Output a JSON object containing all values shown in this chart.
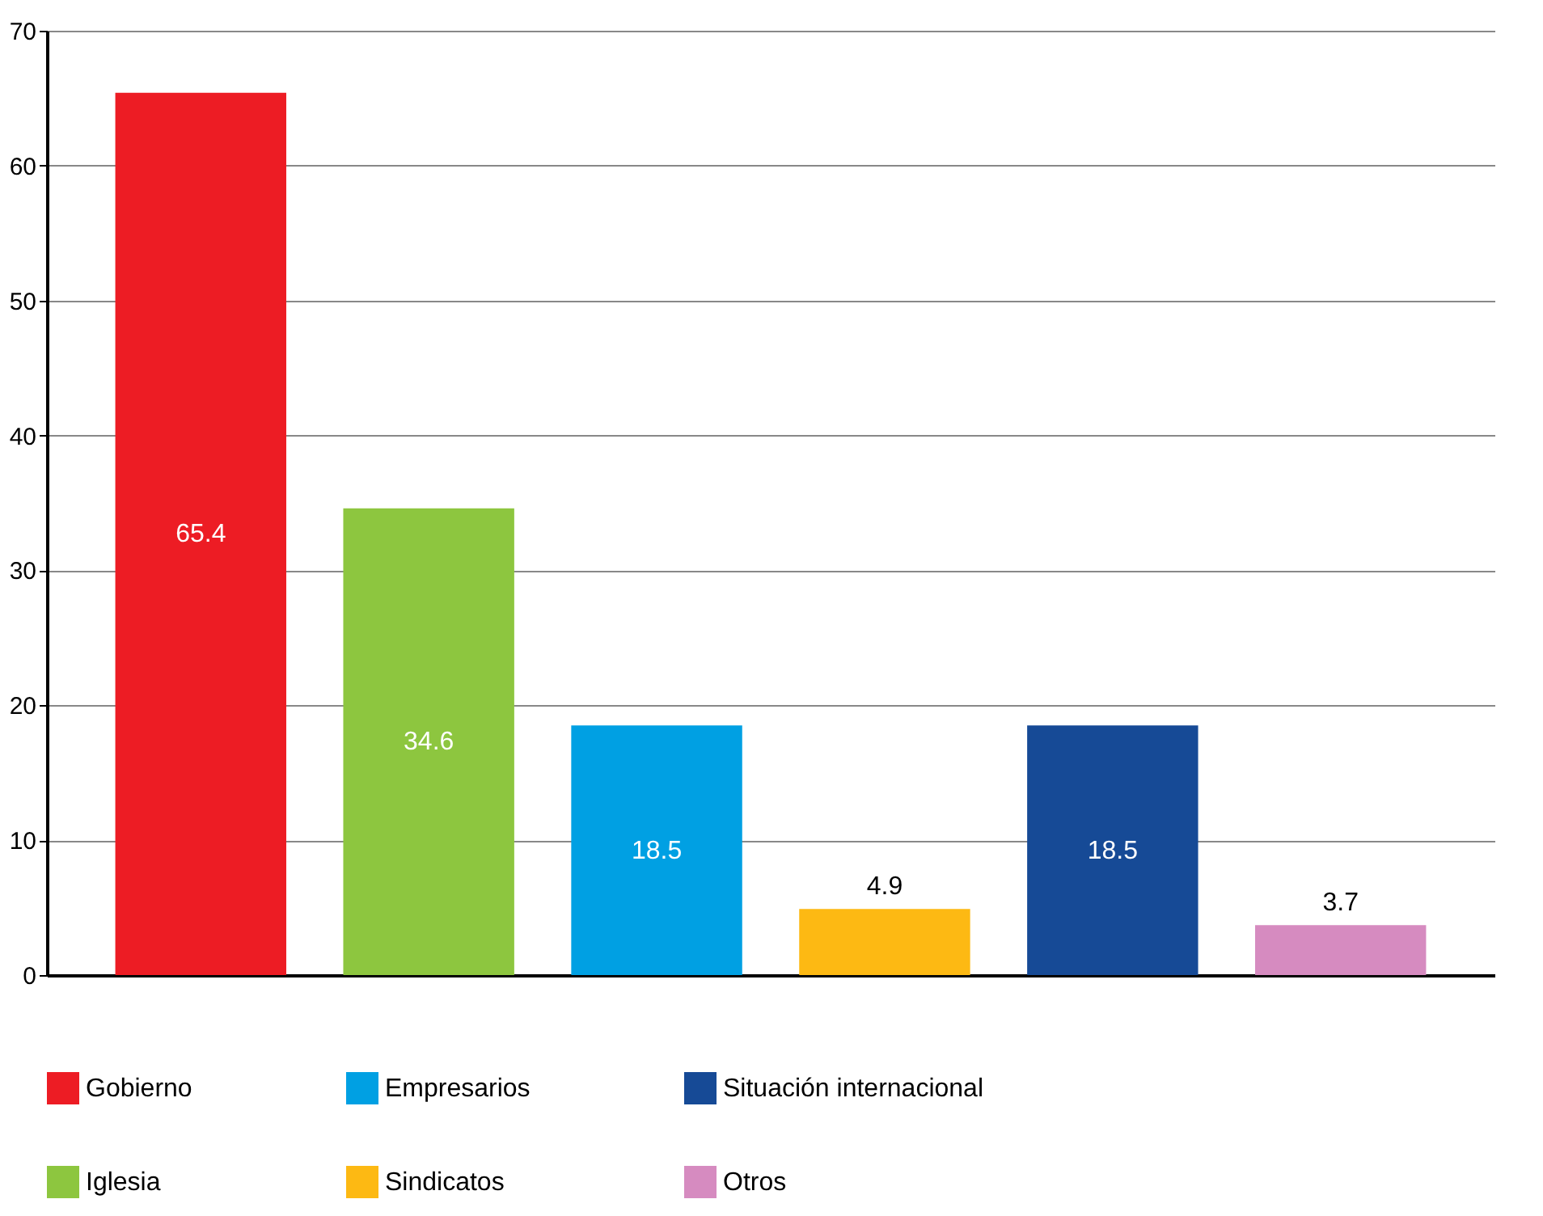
{
  "chart_data": {
    "type": "bar",
    "categories": [
      null,
      null,
      null,
      null,
      null,
      null
    ],
    "series": [
      {
        "name": "Gobierno",
        "color": "#ed1c24",
        "values": [
          65.4,
          null,
          null,
          null,
          null,
          null
        ]
      },
      {
        "name": "Iglesia",
        "color": "#8dc63f",
        "values": [
          null,
          34.6,
          null,
          null,
          null,
          null
        ]
      },
      {
        "name": "Empresarios",
        "color": "#00a0e3",
        "values": [
          null,
          null,
          18.5,
          null,
          null,
          null
        ]
      },
      {
        "name": "Sindicatos",
        "color": "#fdb913",
        "values": [
          null,
          null,
          null,
          4.9,
          null,
          null
        ]
      },
      {
        "name": "Situación internacional",
        "color": "#164a96",
        "values": [
          null,
          null,
          null,
          null,
          18.5,
          null
        ]
      },
      {
        "name": "Otros",
        "color": "#d68bc0",
        "values": [
          null,
          null,
          null,
          null,
          null,
          3.7
        ]
      }
    ],
    "ylim": [
      0,
      70
    ],
    "yticks": [
      0,
      10,
      20,
      30,
      40,
      50,
      60,
      70
    ],
    "grid": "y",
    "legend": "bottom",
    "data_labels": true
  }
}
